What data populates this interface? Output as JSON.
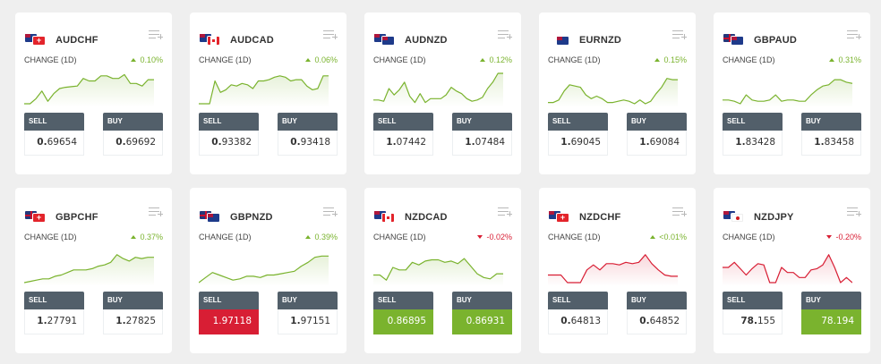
{
  "colors": {
    "up": "#7ab32e",
    "down": "#d81e34",
    "header": "#525f6a",
    "background": "#efefef"
  },
  "labels": {
    "change": "CHANGE (1D)",
    "sell": "SELL",
    "buy": "BUY"
  },
  "cards": [
    {
      "pair": "AUDCHF",
      "base": "AUD",
      "quote": "CHF",
      "change": "0.10%",
      "direction": "up",
      "chart_color": "up",
      "sell_int": "0.",
      "sell_dec": "69654",
      "buy_int": "0.",
      "buy_dec": "69692",
      "sell_state": "normal",
      "buy_state": "normal",
      "spark": [
        0,
        0,
        4,
        10,
        2,
        8,
        12,
        13,
        13.5,
        14,
        20,
        18,
        18,
        22,
        22,
        20,
        20,
        23,
        16,
        16,
        14,
        19,
        19
      ]
    },
    {
      "pair": "AUDCAD",
      "base": "AUD",
      "quote": "CAD",
      "change": "0.06%",
      "direction": "up",
      "chart_color": "up",
      "sell_int": "0.",
      "sell_dec": "93382",
      "buy_int": "0.",
      "buy_dec": "93418",
      "sell_state": "normal",
      "buy_state": "normal",
      "spark": [
        0,
        0,
        0,
        18,
        9,
        11,
        15,
        14,
        16,
        15,
        12,
        18,
        18,
        19,
        21,
        22,
        21,
        18,
        19,
        19,
        14,
        11,
        12,
        22,
        22
      ]
    },
    {
      "pair": "AUDNZD",
      "base": "AUD",
      "quote": "NZD",
      "change": "0.12%",
      "direction": "up",
      "chart_color": "up",
      "sell_int": "1.",
      "sell_dec": "07442",
      "buy_int": "1.",
      "buy_dec": "07484",
      "sell_state": "normal",
      "buy_state": "normal",
      "spark": [
        3,
        3,
        2,
        12,
        7,
        11,
        17,
        6,
        1,
        8,
        1,
        4,
        4,
        4,
        7,
        13,
        10,
        8,
        4,
        2,
        3,
        5,
        12,
        17,
        24,
        24
      ]
    },
    {
      "pair": "EURNZD",
      "base": "EUR",
      "quote": "NZD",
      "change": "0.15%",
      "direction": "up",
      "chart_color": "up",
      "sell_int": "1.",
      "sell_dec": "69045",
      "buy_int": "1.",
      "buy_dec": "69084",
      "sell_state": "normal",
      "buy_state": "normal",
      "spark": [
        1,
        1,
        3,
        10,
        15,
        14,
        13,
        7,
        4,
        6,
        4,
        1,
        1,
        2,
        3,
        2,
        0,
        3,
        0,
        2,
        8,
        13,
        20,
        19,
        19
      ]
    },
    {
      "pair": "GBPAUD",
      "base": "GBP",
      "quote": "AUD",
      "change": "0.31%",
      "direction": "up",
      "chart_color": "up",
      "sell_int": "1.",
      "sell_dec": "83428",
      "buy_int": "1.",
      "buy_dec": "83458",
      "sell_state": "normal",
      "buy_state": "normal",
      "spark": [
        3,
        3,
        2,
        0,
        7,
        3,
        2,
        2,
        3,
        7,
        2,
        3,
        3,
        2,
        2,
        7,
        11,
        14,
        15,
        19,
        19,
        17,
        16
      ]
    },
    {
      "pair": "GBPCHF",
      "base": "GBP",
      "quote": "CHF",
      "change": "0.37%",
      "direction": "up",
      "chart_color": "up",
      "sell_int": "1.",
      "sell_dec": "27791",
      "buy_int": "1.",
      "buy_dec": "27825",
      "sell_state": "normal",
      "buy_state": "normal",
      "spark": [
        0,
        1,
        2,
        3,
        3,
        5,
        6,
        8,
        10,
        10,
        10,
        11,
        13,
        14,
        16,
        22,
        19,
        17,
        20,
        19,
        20,
        20
      ]
    },
    {
      "pair": "GBPNZD",
      "base": "GBP",
      "quote": "NZD",
      "change": "0.39%",
      "direction": "up",
      "chart_color": "up",
      "sell_int": "1.",
      "sell_dec": "97118",
      "buy_int": "1.",
      "buy_dec": "97151",
      "sell_state": "red",
      "buy_state": "normal",
      "spark": [
        0,
        4,
        8,
        6,
        4,
        2,
        3,
        5,
        5,
        4,
        6,
        6,
        7,
        8,
        9,
        13,
        16,
        20,
        21,
        21
      ]
    },
    {
      "pair": "NZDCAD",
      "base": "NZD",
      "quote": "CAD",
      "change": "-0.02%",
      "direction": "down",
      "chart_color": "up",
      "sell_int": "0.",
      "sell_dec": "86895",
      "buy_int": "0.",
      "buy_dec": "86931",
      "sell_state": "green",
      "buy_state": "green",
      "spark": [
        6,
        6,
        2,
        12,
        10,
        10,
        16,
        14,
        17,
        18,
        18,
        16,
        17,
        15,
        19,
        13,
        7,
        4,
        3,
        7,
        7
      ]
    },
    {
      "pair": "NZDCHF",
      "base": "NZD",
      "quote": "CHF",
      "change": "<0.01%",
      "direction": "up",
      "chart_color": "down",
      "sell_int": "0.",
      "sell_dec": "64813",
      "buy_int": "0.",
      "buy_dec": "64852",
      "sell_state": "normal",
      "buy_state": "normal",
      "spark": [
        6,
        6,
        6,
        0,
        0,
        0,
        10,
        14,
        10,
        15,
        15,
        14,
        16,
        15,
        16,
        22,
        15,
        10,
        6,
        5,
        5
      ]
    },
    {
      "pair": "NZDJPY",
      "base": "NZD",
      "quote": "JPY",
      "change": "-0.20%",
      "direction": "down",
      "chart_color": "down",
      "sell_int": "78.",
      "sell_dec": "155",
      "buy_int": "78.",
      "buy_dec": "194",
      "sell_state": "normal",
      "buy_state": "green",
      "spark": [
        12,
        12,
        16,
        11,
        6,
        11,
        15,
        14,
        0,
        0,
        12,
        8,
        8,
        4,
        4,
        10,
        11,
        14,
        22,
        12,
        0,
        4,
        0
      ]
    }
  ]
}
